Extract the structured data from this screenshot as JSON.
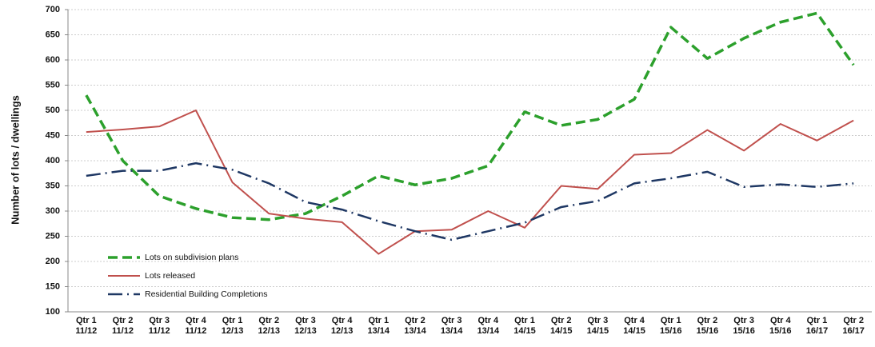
{
  "chart_data": {
    "type": "line",
    "ylabel": "Number of lots / dwellings",
    "categories": [
      [
        "Qtr 1",
        "11/12"
      ],
      [
        "Qtr 2",
        "11/12"
      ],
      [
        "Qtr 3",
        "11/12"
      ],
      [
        "Qtr 4",
        "11/12"
      ],
      [
        "Qtr 1",
        "12/13"
      ],
      [
        "Qtr 2",
        "12/13"
      ],
      [
        "Qtr 3",
        "12/13"
      ],
      [
        "Qtr 4",
        "12/13"
      ],
      [
        "Qtr 1",
        "13/14"
      ],
      [
        "Qtr 2",
        "13/14"
      ],
      [
        "Qtr 3",
        "13/14"
      ],
      [
        "Qtr 4",
        "13/14"
      ],
      [
        "Qtr 1",
        "14/15"
      ],
      [
        "Qtr 2",
        "14/15"
      ],
      [
        "Qtr 3",
        "14/15"
      ],
      [
        "Qtr 4",
        "14/15"
      ],
      [
        "Qtr 1",
        "15/16"
      ],
      [
        "Qtr 2",
        "15/16"
      ],
      [
        "Qtr 3",
        "15/16"
      ],
      [
        "Qtr 4",
        "15/16"
      ],
      [
        "Qtr 1",
        "16/17"
      ],
      [
        "Qtr 2",
        "16/17"
      ]
    ],
    "series": [
      {
        "name": "Lots on subdivision plans",
        "color": "#2ca02c",
        "style": "dashed",
        "values": [
          530,
          400,
          330,
          305,
          287,
          283,
          295,
          330,
          370,
          352,
          365,
          390,
          497,
          470,
          482,
          522,
          665,
          603,
          643,
          675,
          693,
          590
        ]
      },
      {
        "name": "Lots released",
        "color": "#c0504d",
        "style": "solid",
        "values": [
          457,
          462,
          468,
          500,
          357,
          295,
          285,
          278,
          215,
          260,
          263,
          300,
          267,
          350,
          344,
          412,
          415,
          461,
          420,
          473,
          440,
          480
        ]
      },
      {
        "name": "Residential Building Completions",
        "color": "#1f3864",
        "style": "dashdot",
        "values": [
          370,
          380,
          380,
          395,
          382,
          355,
          318,
          303,
          280,
          260,
          243,
          260,
          277,
          308,
          320,
          355,
          365,
          378,
          348,
          353,
          348,
          355
        ]
      }
    ],
    "ylim": [
      100,
      700
    ],
    "yticks": [
      100,
      150,
      200,
      250,
      300,
      350,
      400,
      450,
      500,
      550,
      600,
      650,
      700
    ],
    "grid": true,
    "legend": "lower-left"
  }
}
